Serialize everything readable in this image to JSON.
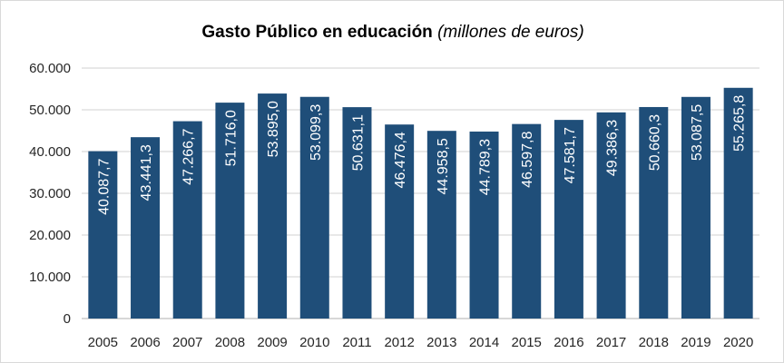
{
  "chart_data": {
    "type": "bar",
    "title": "Gasto Público en educación",
    "title_italic": "(millones de euros)",
    "xlabel": "",
    "ylabel": "",
    "categories": [
      "2005",
      "2006",
      "2007",
      "2008",
      "2009",
      "2010",
      "2011",
      "2012",
      "2013",
      "2014",
      "2015",
      "2016",
      "2017",
      "2018",
      "2019",
      "2020"
    ],
    "values": [
      40087.7,
      43441.3,
      47266.7,
      51716.0,
      53895.0,
      53099.3,
      50631.1,
      46476.4,
      44958.5,
      44789.3,
      46597.8,
      47581.7,
      49386.3,
      50660.3,
      53087.5,
      55265.8
    ],
    "data_labels": [
      "40.087,7",
      "43.441,3",
      "47.266,7",
      "51.716,0",
      "53.895,0",
      "53.099,3",
      "50.631,1",
      "46.476,4",
      "44.958,5",
      "44.789,3",
      "46.597,8",
      "47.581,7",
      "49.386,3",
      "50.660,3",
      "53.087,5",
      "55.265,8"
    ],
    "ylim": [
      0,
      60000
    ],
    "yticks": [
      0,
      10000,
      20000,
      30000,
      40000,
      50000,
      60000
    ],
    "ytick_labels": [
      "0",
      "10.000",
      "20.000",
      "30.000",
      "40.000",
      "50.000",
      "60.000"
    ],
    "grid": true,
    "legend": "none",
    "colors": {
      "bar": "#1f4e79",
      "grid": "#d9d9d9"
    }
  }
}
